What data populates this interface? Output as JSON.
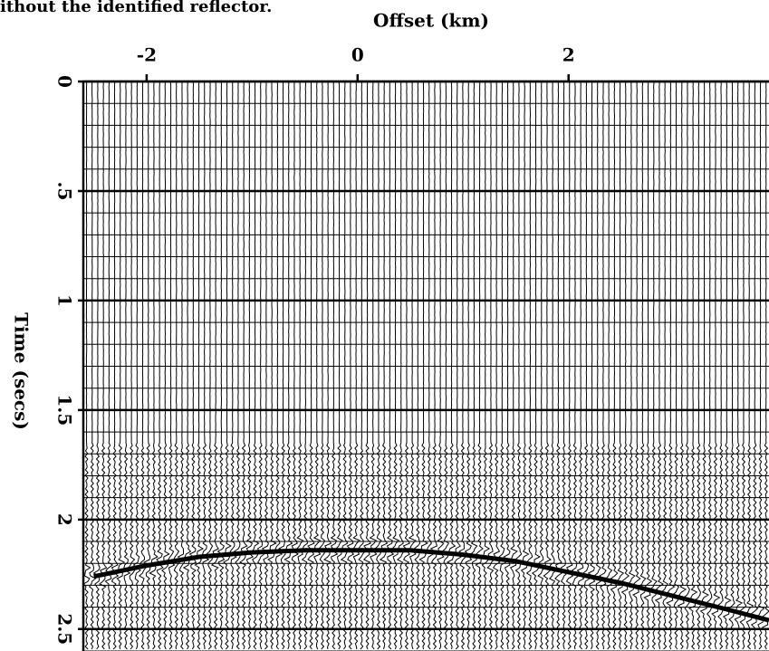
{
  "caption": "ithout the identified reflector.",
  "chart_data": {
    "type": "seismic",
    "xlabel": "Offset (km)",
    "ylabel": "Time (secs)",
    "xlim": [
      -2.6,
      3.9
    ],
    "ylim": [
      2.6,
      0
    ],
    "xticks": [
      -2,
      0,
      2
    ],
    "yticks": [
      0,
      {
        "value": 0.5,
        "label": ".5"
      },
      1,
      {
        "value": 1.5,
        "label": "1.5"
      },
      2,
      {
        "value": 2.5,
        "label": "2.5"
      }
    ],
    "grid": true,
    "x": [
      -2.5,
      -2,
      -1.5,
      -1,
      -0.5,
      0,
      0.5,
      1,
      1.5,
      2,
      2.5,
      3,
      3.5,
      3.9
    ],
    "values": [
      2.26,
      2.21,
      2.17,
      2.15,
      2.14,
      2.14,
      2.14,
      2.16,
      2.19,
      2.24,
      2.29,
      2.35,
      2.41,
      2.46
    ],
    "color": "#000000"
  }
}
